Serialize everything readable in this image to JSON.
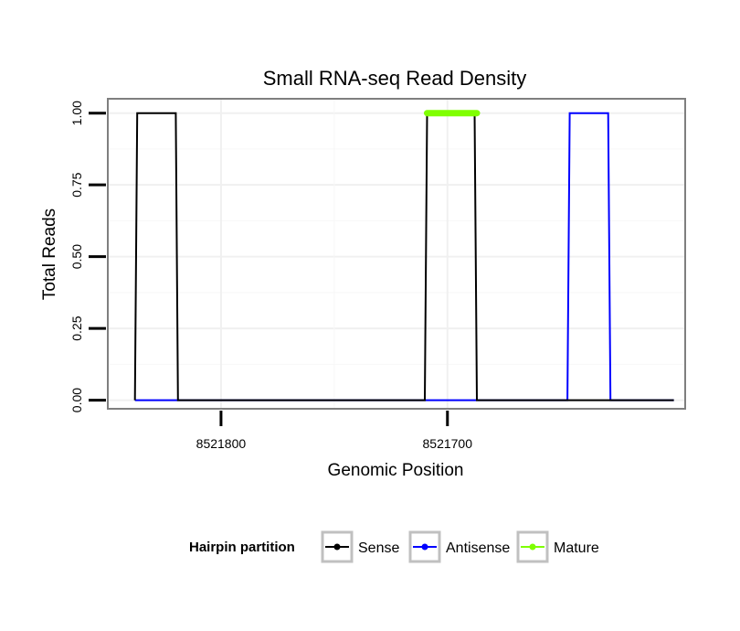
{
  "chart_data": {
    "type": "line",
    "title": "Small RNA-seq Read Density",
    "xlabel": "Genomic Position",
    "ylabel": "Total Reads",
    "x_reversed": true,
    "xlim": [
      8521850,
      8521595
    ],
    "ylim": [
      -0.03,
      1.05
    ],
    "x_ticks": [
      8521800,
      8521700
    ],
    "x_tick_labels": [
      "8521800",
      "8521700"
    ],
    "y_ticks": [
      0,
      0.25,
      0.5,
      0.75,
      1
    ],
    "y_tick_labels": [
      "0.00",
      "0.25",
      "0.50",
      "0.75",
      "1.00"
    ],
    "grid": true,
    "legend": {
      "title": "Hairpin partition",
      "position": "bottom",
      "entries": [
        "Sense",
        "Antisense",
        "Mature"
      ]
    },
    "series": [
      {
        "name": "Sense",
        "color": "#000000",
        "x": [
          8521838,
          8521837,
          8521820,
          8521819,
          8521710,
          8521709,
          8521688,
          8521687,
          8521600
        ],
        "y": [
          0,
          1,
          1,
          0,
          0,
          1,
          1,
          0,
          0
        ]
      },
      {
        "name": "Antisense",
        "color": "#0000ff",
        "x": [
          8521838,
          8521647,
          8521646,
          8521629,
          8521628,
          8521600
        ],
        "y": [
          0,
          0,
          1,
          1,
          0,
          0
        ]
      },
      {
        "name": "Mature",
        "color": "#7fff00",
        "x": [
          8521709,
          8521687
        ],
        "y": [
          1,
          1
        ]
      }
    ]
  }
}
